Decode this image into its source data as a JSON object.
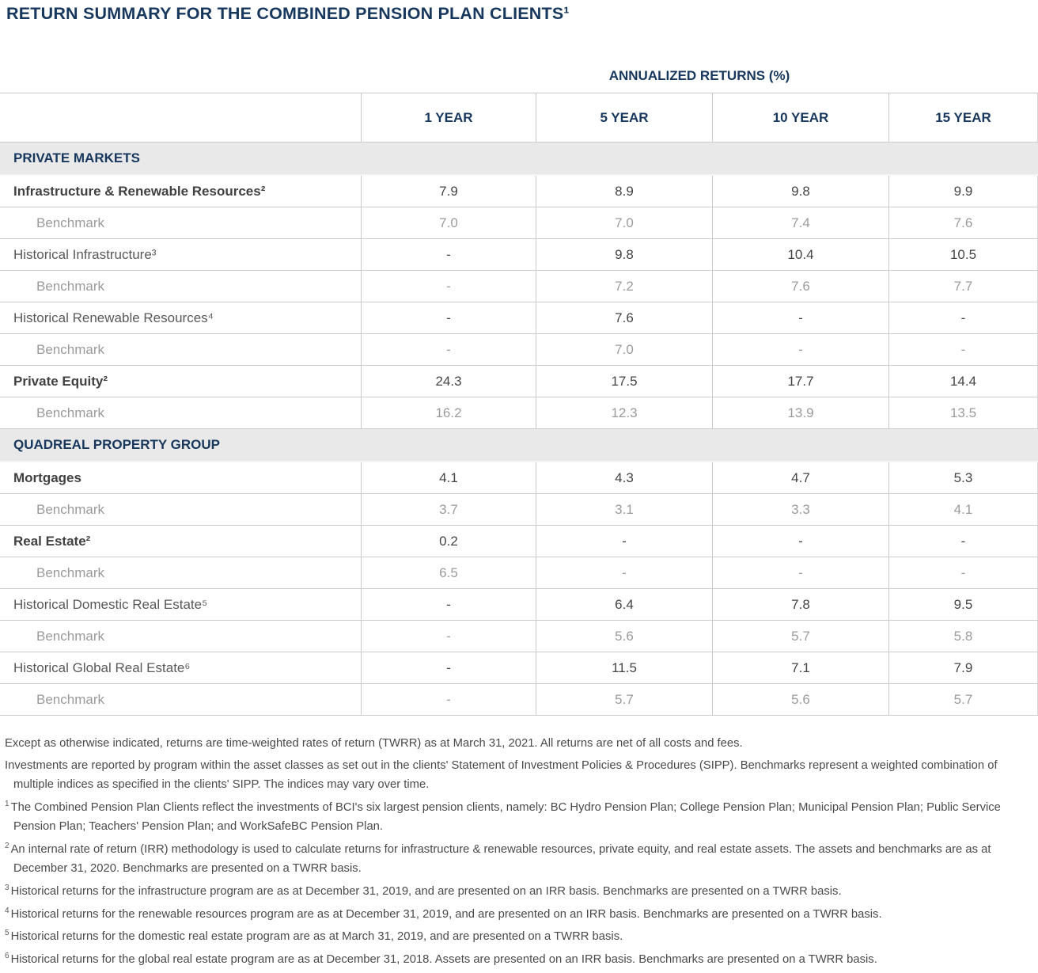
{
  "theme": {
    "navy": "#17375d",
    "section_bg": "#e9e9e9",
    "border": "#c9c9c9",
    "main_text": "#414141",
    "muted_text": "#595959",
    "benchmark_text": "#9a9a9a"
  },
  "page": {
    "title": "RETURN SUMMARY FOR THE COMBINED PENSION PLAN CLIENTS¹"
  },
  "table": {
    "group_header": "ANNUALIZED RETURNS (%)",
    "columns": [
      "1 YEAR",
      "5 YEAR",
      "10 YEAR",
      "15 YEAR"
    ],
    "rows": [
      {
        "type": "section",
        "label": "PRIVATE MARKETS"
      },
      {
        "type": "main",
        "label": "Infrastructure & Renewable Resources²",
        "values": [
          "7.9",
          "8.9",
          "9.8",
          "9.9"
        ]
      },
      {
        "type": "benchmark",
        "label": "Benchmark",
        "values": [
          "7.0",
          "7.0",
          "7.4",
          "7.6"
        ]
      },
      {
        "type": "historical",
        "label": "Historical Infrastructure³",
        "values": [
          "-",
          "9.8",
          "10.4",
          "10.5"
        ]
      },
      {
        "type": "benchmark",
        "label": "Benchmark",
        "values": [
          "-",
          "7.2",
          "7.6",
          "7.7"
        ]
      },
      {
        "type": "historical",
        "label": "Historical Renewable Resources⁴",
        "values": [
          "-",
          "7.6",
          "-",
          "-"
        ]
      },
      {
        "type": "benchmark",
        "label": "Benchmark",
        "values": [
          "-",
          "7.0",
          "-",
          "-"
        ]
      },
      {
        "type": "main",
        "label": "Private Equity²",
        "values": [
          "24.3",
          "17.5",
          "17.7",
          "14.4"
        ]
      },
      {
        "type": "benchmark",
        "label": "Benchmark",
        "values": [
          "16.2",
          "12.3",
          "13.9",
          "13.5"
        ]
      },
      {
        "type": "section",
        "label": "QUADREAL PROPERTY GROUP"
      },
      {
        "type": "main",
        "label": "Mortgages",
        "values": [
          "4.1",
          "4.3",
          "4.7",
          "5.3"
        ]
      },
      {
        "type": "benchmark",
        "label": "Benchmark",
        "values": [
          "3.7",
          "3.1",
          "3.3",
          "4.1"
        ]
      },
      {
        "type": "main",
        "label": "Real Estate²",
        "values": [
          "0.2",
          "-",
          "-",
          "-"
        ]
      },
      {
        "type": "benchmark",
        "label": "Benchmark",
        "values": [
          "6.5",
          "-",
          "-",
          "-"
        ]
      },
      {
        "type": "historical",
        "label": "Historical Domestic Real Estate⁵",
        "values": [
          "-",
          "6.4",
          "7.8",
          "9.5"
        ]
      },
      {
        "type": "benchmark",
        "label": "Benchmark",
        "values": [
          "-",
          "5.6",
          "5.7",
          "5.8"
        ]
      },
      {
        "type": "historical",
        "label": "Historical Global Real Estate⁶",
        "values": [
          "-",
          "11.5",
          "7.1",
          "7.9"
        ]
      },
      {
        "type": "benchmark",
        "label": "Benchmark",
        "values": [
          "-",
          "5.7",
          "5.6",
          "5.7"
        ]
      }
    ]
  },
  "chart_data": {
    "type": "table",
    "title": "RETURN SUMMARY FOR THE COMBINED PENSION PLAN CLIENTS",
    "subtitle": "ANNUALIZED RETURNS (%)",
    "columns": [
      "",
      "1 YEAR",
      "5 YEAR",
      "10 YEAR",
      "15 YEAR"
    ],
    "rows": [
      [
        "PRIVATE MARKETS",
        "",
        "",
        "",
        ""
      ],
      [
        "Infrastructure & Renewable Resources²",
        "7.9",
        "8.9",
        "9.8",
        "9.9"
      ],
      [
        "Benchmark",
        "7.0",
        "7.0",
        "7.4",
        "7.6"
      ],
      [
        "Historical Infrastructure³",
        "-",
        "9.8",
        "10.4",
        "10.5"
      ],
      [
        "Benchmark",
        "-",
        "7.2",
        "7.6",
        "7.7"
      ],
      [
        "Historical Renewable Resources⁴",
        "-",
        "7.6",
        "-",
        "-"
      ],
      [
        "Benchmark",
        "-",
        "7.0",
        "-",
        "-"
      ],
      [
        "Private Equity²",
        "24.3",
        "17.5",
        "17.7",
        "14.4"
      ],
      [
        "Benchmark",
        "16.2",
        "12.3",
        "13.9",
        "13.5"
      ],
      [
        "QUADREAL PROPERTY GROUP",
        "",
        "",
        "",
        ""
      ],
      [
        "Mortgages",
        "4.1",
        "4.3",
        "4.7",
        "5.3"
      ],
      [
        "Benchmark",
        "3.7",
        "3.1",
        "3.3",
        "4.1"
      ],
      [
        "Real Estate²",
        "0.2",
        "-",
        "-",
        "-"
      ],
      [
        "Benchmark",
        "6.5",
        "-",
        "-",
        "-"
      ],
      [
        "Historical Domestic Real Estate⁵",
        "-",
        "6.4",
        "7.8",
        "9.5"
      ],
      [
        "Benchmark",
        "-",
        "5.6",
        "5.7",
        "5.8"
      ],
      [
        "Historical Global Real Estate⁶",
        "-",
        "11.5",
        "7.1",
        "7.9"
      ],
      [
        "Benchmark",
        "-",
        "5.7",
        "5.6",
        "5.7"
      ]
    ]
  },
  "footnotes": {
    "items": [
      {
        "sup": "",
        "text": "Except as otherwise indicated, returns are time-weighted rates of return (TWRR) as at March 31, 2021. All returns are net of all costs and fees."
      },
      {
        "sup": "",
        "text": "Investments are reported by program within the asset classes as set out in the clients' Statement of Investment Policies & Procedures (SIPP). Benchmarks represent a weighted combination of multiple indices as specified in the clients' SIPP. The indices may vary over time."
      },
      {
        "sup": "1",
        "text": "The Combined Pension Plan Clients reflect the investments of BCI's six largest pension clients, namely: BC Hydro Pension Plan; College Pension Plan; Municipal Pension Plan; Public Service Pension Plan; Teachers' Pension Plan; and WorkSafeBC Pension Plan."
      },
      {
        "sup": "2",
        "text": "An internal rate of return (IRR) methodology is used to calculate returns for infrastructure & renewable resources, private equity, and real estate assets. The assets and benchmarks are as at December 31, 2020. Benchmarks are presented on a TWRR basis."
      },
      {
        "sup": "3",
        "text": "Historical returns for the infrastructure program are as at December 31, 2019, and are presented on an IRR basis. Benchmarks are presented on a TWRR basis."
      },
      {
        "sup": "4",
        "text": "Historical returns for the renewable resources program are as at December 31, 2019, and are presented on an IRR basis. Benchmarks are presented on a TWRR basis."
      },
      {
        "sup": "5",
        "text": "Historical returns for the domestic real estate program are as at March 31, 2019, and are presented on a TWRR basis."
      },
      {
        "sup": "6",
        "text": "Historical returns for the global real estate program are as at December 31, 2018. Assets are presented on an IRR basis. Benchmarks are presented on a TWRR basis."
      }
    ]
  }
}
